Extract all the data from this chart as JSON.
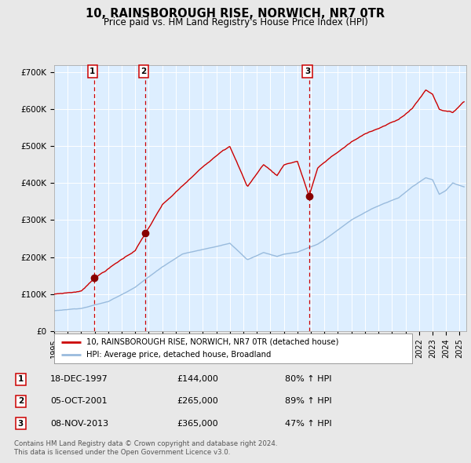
{
  "title": "10, RAINSBOROUGH RISE, NORWICH, NR7 0TR",
  "subtitle": "Price paid vs. HM Land Registry's House Price Index (HPI)",
  "sale_dates_decimal": [
    1997.96,
    2001.75,
    2013.86
  ],
  "sale_prices": [
    144000,
    265000,
    365000
  ],
  "sale_labels": [
    "1",
    "2",
    "3"
  ],
  "sale_info": [
    {
      "num": "1",
      "date": "18-DEC-1997",
      "price": "£144,000",
      "hpi": "80% ↑ HPI"
    },
    {
      "num": "2",
      "date": "05-OCT-2001",
      "price": "£265,000",
      "hpi": "89% ↑ HPI"
    },
    {
      "num": "3",
      "date": "08-NOV-2013",
      "price": "£365,000",
      "hpi": "47% ↑ HPI"
    }
  ],
  "legend_line1": "10, RAINSBOROUGH RISE, NORWICH, NR7 0TR (detached house)",
  "legend_line2": "HPI: Average price, detached house, Broadland",
  "footer1": "Contains HM Land Registry data © Crown copyright and database right 2024.",
  "footer2": "This data is licensed under the Open Government Licence v3.0.",
  "price_line_color": "#cc0000",
  "hpi_line_color": "#99bbdd",
  "dashed_line_color": "#cc0000",
  "marker_color": "#880000",
  "background_color": "#e8e8e8",
  "plot_bg_color": "#ddeeff",
  "ylim": [
    0,
    720000
  ],
  "yticks": [
    0,
    100000,
    200000,
    300000,
    400000,
    500000,
    600000,
    700000
  ],
  "ytick_labels": [
    "£0",
    "£100K",
    "£200K",
    "£300K",
    "£400K",
    "£500K",
    "£600K",
    "£700K"
  ],
  "xlim_start": 1995.0,
  "xlim_end": 2025.5,
  "xticks": [
    1995,
    1996,
    1997,
    1998,
    1999,
    2000,
    2001,
    2002,
    2003,
    2004,
    2005,
    2006,
    2007,
    2008,
    2009,
    2010,
    2011,
    2012,
    2013,
    2014,
    2015,
    2016,
    2017,
    2018,
    2019,
    2020,
    2021,
    2022,
    2023,
    2024,
    2025
  ]
}
